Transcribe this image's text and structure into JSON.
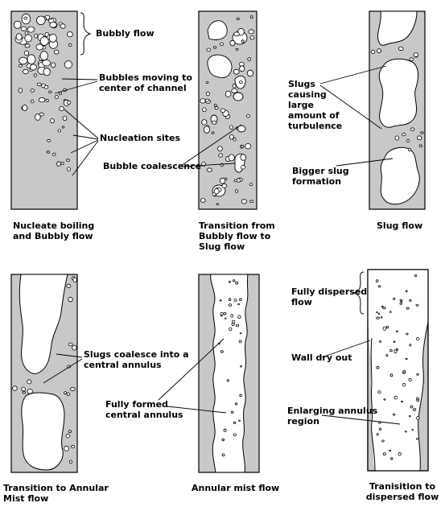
{
  "colors": {
    "fill": "#c8c8c8",
    "outline": "#000000",
    "background": "#ffffff"
  },
  "panels": [
    {
      "caption": "Nucleate boiling\nand Bubbly flow",
      "annotations": [
        "Bubbly flow",
        "Bubbles moving to\ncenter of channel",
        "Nucleation sites"
      ]
    },
    {
      "caption": "Transition from\nBubbly flow to\nSlug flow",
      "annotations": [
        "Bubble coalescence"
      ]
    },
    {
      "caption": "Slug flow",
      "annotations": [
        "Slugs\ncausing\nlarge\namount of\nturbulence",
        "Bigger slug\nformation"
      ]
    },
    {
      "caption": "Transition to Annular\nMist flow",
      "annotations": [
        "Slugs coalesce into a\ncentral annulus"
      ]
    },
    {
      "caption": "Annular mist flow",
      "annotations": [
        "Fully formed\ncentral annulus"
      ]
    },
    {
      "caption": "Tranisition to\ndispersed flow",
      "annotations": [
        "Fully dispersed\nflow",
        "Wall dry out",
        "Enlarging annulus\nregion"
      ]
    }
  ]
}
